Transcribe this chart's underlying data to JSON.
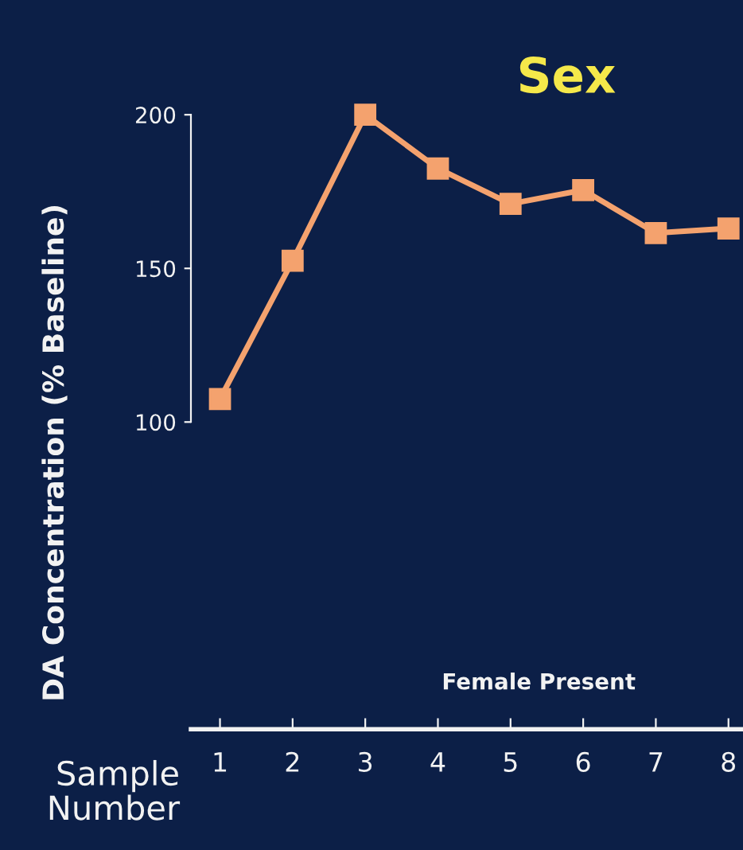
{
  "chart_data": {
    "type": "line",
    "title": "Sex",
    "ylabel": "DA Concentration (% Baseline)",
    "xlabel": "Sample Number",
    "categories": [
      "1",
      "2",
      "3",
      "4",
      "5",
      "6",
      "7",
      "8"
    ],
    "series": [
      {
        "color": "#f4a26e",
        "values": [
          107.5,
          152.5,
          200,
          182.5,
          171,
          175.5,
          161.5,
          163
        ]
      }
    ],
    "ylim": [
      0,
      200
    ],
    "yticks": [
      100,
      150,
      200
    ],
    "marker": "square",
    "line_style": "solid",
    "grid": false,
    "legend": false,
    "annotations": [
      "Female Present"
    ]
  }
}
